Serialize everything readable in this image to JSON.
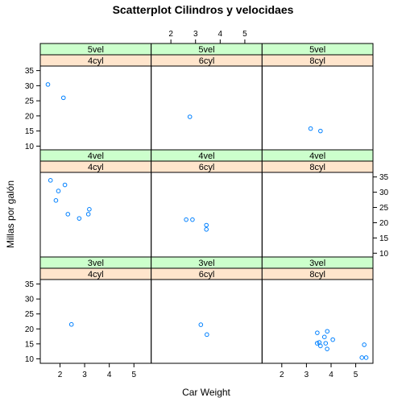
{
  "chart_data": {
    "type": "scatter",
    "title": "Scatterplot Cilindros y velocidaes",
    "xlabel": "Car Weight",
    "ylabel": "Millas por galón",
    "xlim": [
      1.2,
      5.7
    ],
    "ylim": [
      8.5,
      36.5
    ],
    "x_ticks": [
      2,
      3,
      4,
      5
    ],
    "y_ticks": [
      10,
      15,
      20,
      25,
      30,
      35
    ],
    "grid": false,
    "point_color": "#0080ff",
    "strip_colors": {
      "gear": "#ccffcc",
      "cyl": "#ffe5cc"
    },
    "panels": [
      {
        "gear": "5vel",
        "cyl": "4cyl",
        "row": 0,
        "col": 0,
        "points": [
          [
            1.51,
            30.4
          ],
          [
            2.14,
            26.0
          ]
        ]
      },
      {
        "gear": "5vel",
        "cyl": "6cyl",
        "row": 0,
        "col": 1,
        "points": [
          [
            2.77,
            19.7
          ]
        ]
      },
      {
        "gear": "5vel",
        "cyl": "8cyl",
        "row": 0,
        "col": 2,
        "points": [
          [
            3.17,
            15.8
          ],
          [
            3.57,
            15.0
          ]
        ]
      },
      {
        "gear": "4vel",
        "cyl": "4cyl",
        "row": 1,
        "col": 0,
        "points": [
          [
            1.615,
            33.9
          ],
          [
            2.2,
            32.4
          ],
          [
            1.835,
            27.3
          ],
          [
            1.935,
            30.4
          ],
          [
            2.32,
            22.8
          ],
          [
            3.19,
            24.4
          ],
          [
            3.15,
            22.8
          ],
          [
            2.78,
            21.4
          ]
        ]
      },
      {
        "gear": "4vel",
        "cyl": "6cyl",
        "row": 1,
        "col": 1,
        "points": [
          [
            2.62,
            21.0
          ],
          [
            2.875,
            21.0
          ],
          [
            3.44,
            19.2
          ],
          [
            3.44,
            17.8
          ]
        ]
      },
      {
        "gear": "4vel",
        "cyl": "8cyl",
        "row": 1,
        "col": 2,
        "points": []
      },
      {
        "gear": "3vel",
        "cyl": "4cyl",
        "row": 2,
        "col": 0,
        "points": [
          [
            2.465,
            21.5
          ]
        ]
      },
      {
        "gear": "3vel",
        "cyl": "6cyl",
        "row": 2,
        "col": 1,
        "points": [
          [
            3.215,
            21.4
          ],
          [
            3.46,
            18.1
          ]
        ]
      },
      {
        "gear": "3vel",
        "cyl": "8cyl",
        "row": 2,
        "col": 2,
        "points": [
          [
            3.44,
            18.7
          ],
          [
            3.57,
            14.3
          ],
          [
            4.07,
            16.4
          ],
          [
            3.73,
            17.3
          ],
          [
            3.78,
            15.2
          ],
          [
            5.25,
            10.4
          ],
          [
            5.424,
            10.4
          ],
          [
            5.345,
            14.7
          ],
          [
            3.52,
            15.5
          ],
          [
            3.435,
            15.2
          ],
          [
            3.84,
            13.3
          ],
          [
            3.845,
            19.2
          ]
        ]
      }
    ]
  }
}
